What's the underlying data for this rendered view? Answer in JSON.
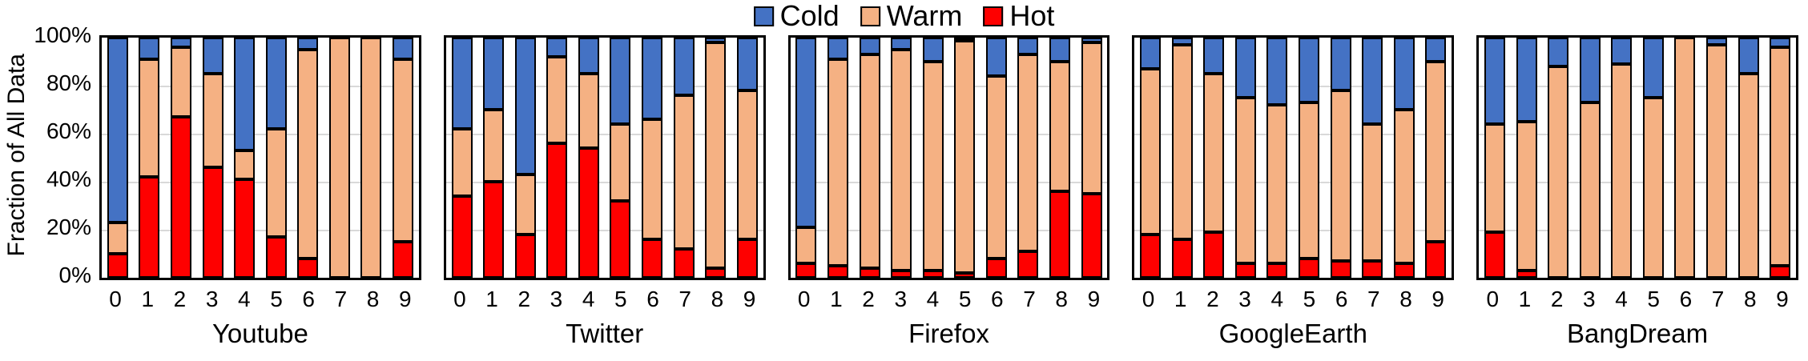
{
  "legend": {
    "items": [
      {
        "label": "Cold",
        "color": "#4472C4"
      },
      {
        "label": "Warm",
        "color": "#F5B183"
      },
      {
        "label": "Hot",
        "color": "#FE0000"
      }
    ]
  },
  "y_axis": {
    "title": "Fraction of All Data",
    "ticks": [
      "100%",
      "80%",
      "60%",
      "40%",
      "20%",
      "0%"
    ]
  },
  "chart_data": {
    "type": "bar",
    "stacked": true,
    "unit": "percent",
    "ylim": [
      0,
      100
    ],
    "ylabel": "Fraction of All Data",
    "legend_position": "top",
    "gridlines": true,
    "categories": [
      "0",
      "1",
      "2",
      "3",
      "4",
      "5",
      "6",
      "7",
      "8",
      "9"
    ],
    "colors": {
      "Cold": "#4472C4",
      "Warm": "#F5B183",
      "Hot": "#FE0000"
    },
    "stack_order_bottom_to_top": [
      "Hot",
      "Warm",
      "Cold"
    ],
    "panels": [
      {
        "title": "Youtube",
        "series": [
          {
            "name": "Hot",
            "values": [
              10,
              42,
              67,
              46,
              41,
              17,
              8,
              0,
              0,
              15
            ]
          },
          {
            "name": "Warm",
            "values": [
              13,
              49,
              29,
              39,
              12,
              45,
              87,
              100,
              100,
              76
            ]
          },
          {
            "name": "Cold",
            "values": [
              77,
              9,
              4,
              15,
              47,
              38,
              5,
              0,
              0,
              9
            ]
          }
        ]
      },
      {
        "title": "Twitter",
        "series": [
          {
            "name": "Hot",
            "values": [
              34,
              40,
              18,
              56,
              54,
              32,
              16,
              12,
              4,
              16
            ]
          },
          {
            "name": "Warm",
            "values": [
              28,
              30,
              25,
              36,
              31,
              32,
              50,
              64,
              94,
              62
            ]
          },
          {
            "name": "Cold",
            "values": [
              38,
              30,
              57,
              8,
              15,
              36,
              34,
              24,
              2,
              22
            ]
          }
        ]
      },
      {
        "title": "Firefox",
        "series": [
          {
            "name": "Hot",
            "values": [
              6,
              5,
              4,
              3,
              3,
              2,
              8,
              11,
              36,
              35
            ]
          },
          {
            "name": "Warm",
            "values": [
              15,
              86,
              89,
              92,
              87,
              97,
              76,
              82,
              54,
              63
            ]
          },
          {
            "name": "Cold",
            "values": [
              79,
              9,
              7,
              5,
              10,
              1,
              16,
              7,
              10,
              2
            ]
          }
        ]
      },
      {
        "title": "GoogleEarth",
        "series": [
          {
            "name": "Hot",
            "values": [
              18,
              16,
              19,
              6,
              6,
              8,
              7,
              7,
              6,
              15
            ]
          },
          {
            "name": "Warm",
            "values": [
              69,
              81,
              66,
              69,
              66,
              65,
              71,
              57,
              64,
              75
            ]
          },
          {
            "name": "Cold",
            "values": [
              13,
              3,
              15,
              25,
              28,
              27,
              22,
              36,
              30,
              10
            ]
          }
        ]
      },
      {
        "title": "BangDream",
        "series": [
          {
            "name": "Hot",
            "values": [
              19,
              3,
              0,
              0,
              0,
              0,
              0,
              0,
              0,
              5
            ]
          },
          {
            "name": "Warm",
            "values": [
              45,
              62,
              88,
              73,
              89,
              75,
              100,
              97,
              85,
              91
            ]
          },
          {
            "name": "Cold",
            "values": [
              36,
              35,
              12,
              27,
              11,
              25,
              0,
              3,
              15,
              4
            ]
          }
        ]
      }
    ]
  }
}
